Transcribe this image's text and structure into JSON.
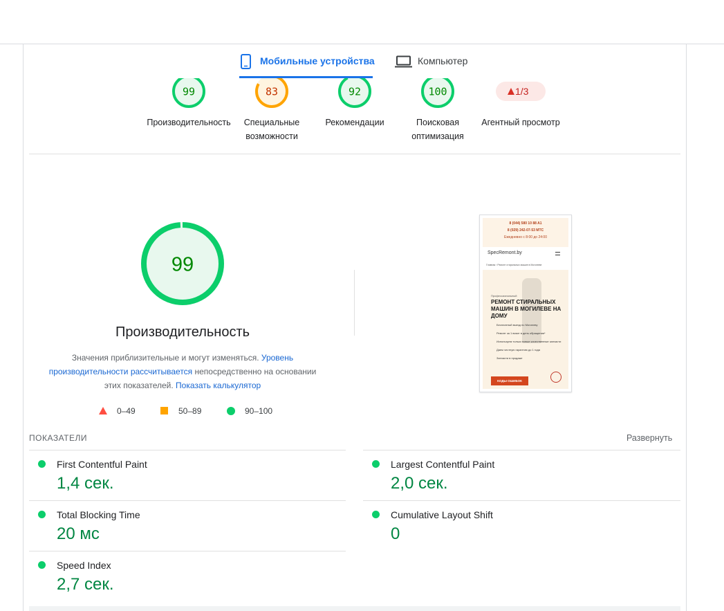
{
  "tabs": [
    {
      "label": "Мобильные устройства",
      "active": true
    },
    {
      "label": "Компьютер",
      "active": false
    }
  ],
  "categories": [
    {
      "score": 99,
      "label": "Производительность"
    },
    {
      "score": 83,
      "label": "Специальные возможности"
    },
    {
      "score": 92,
      "label": "Рекомендации"
    },
    {
      "score": 100,
      "label": "Поисковая оптимизация"
    },
    {
      "badge": "1/3",
      "label": "Агентный просмотр"
    }
  ],
  "performance": {
    "score": 99,
    "title": "Производительность",
    "note": [
      {
        "text": "Значения приблизительные и могут изменяться. "
      },
      {
        "text": "Уровень производительности рассчитывается",
        "link": true
      },
      {
        "text": " непосредственно на основании этих показателей. "
      },
      {
        "text": "Показать калькулятор",
        "link": true
      }
    ],
    "legend": [
      "0–49",
      "50–89",
      "90–100"
    ]
  },
  "screenshot": {
    "phones": [
      "8 (044) 580 10 88 A1",
      "8 (029) 242-07-53 МТС"
    ],
    "hours": "Ежедневно с 8:00 до 24:00",
    "logo": "SpecRemont.by",
    "breadcrumb": "Главная › Ремонт стиральных машин в Могилеве",
    "kicker": "Профессиональный",
    "heading": "РЕМОНТ СТИРАЛЬНЫХ МАШИН В МОГИЛЕВЕ НА ДОМУ",
    "bullets": [
      "Бесплатный выезд по Могилеву",
      "Ремонт за 1 визит в день обращения*",
      "Используем только новые качественные запчасти",
      "Даем честную гарантию до 1 года",
      "Запчасти в продаже"
    ],
    "button": "КОДЫ ОШИБОК"
  },
  "metrics": {
    "title": "ПОКАЗАТЕЛИ",
    "expand": "Развернуть",
    "items": [
      {
        "name": "First Contentful Paint",
        "value": "1,4 сек."
      },
      {
        "name": "Largest Contentful Paint",
        "value": "2,0 сек."
      },
      {
        "name": "Total Blocking Time",
        "value": "20 мс"
      },
      {
        "name": "Cumulative Layout Shift",
        "value": "0"
      },
      {
        "name": "Speed Index",
        "value": "2,7 сек."
      }
    ]
  }
}
